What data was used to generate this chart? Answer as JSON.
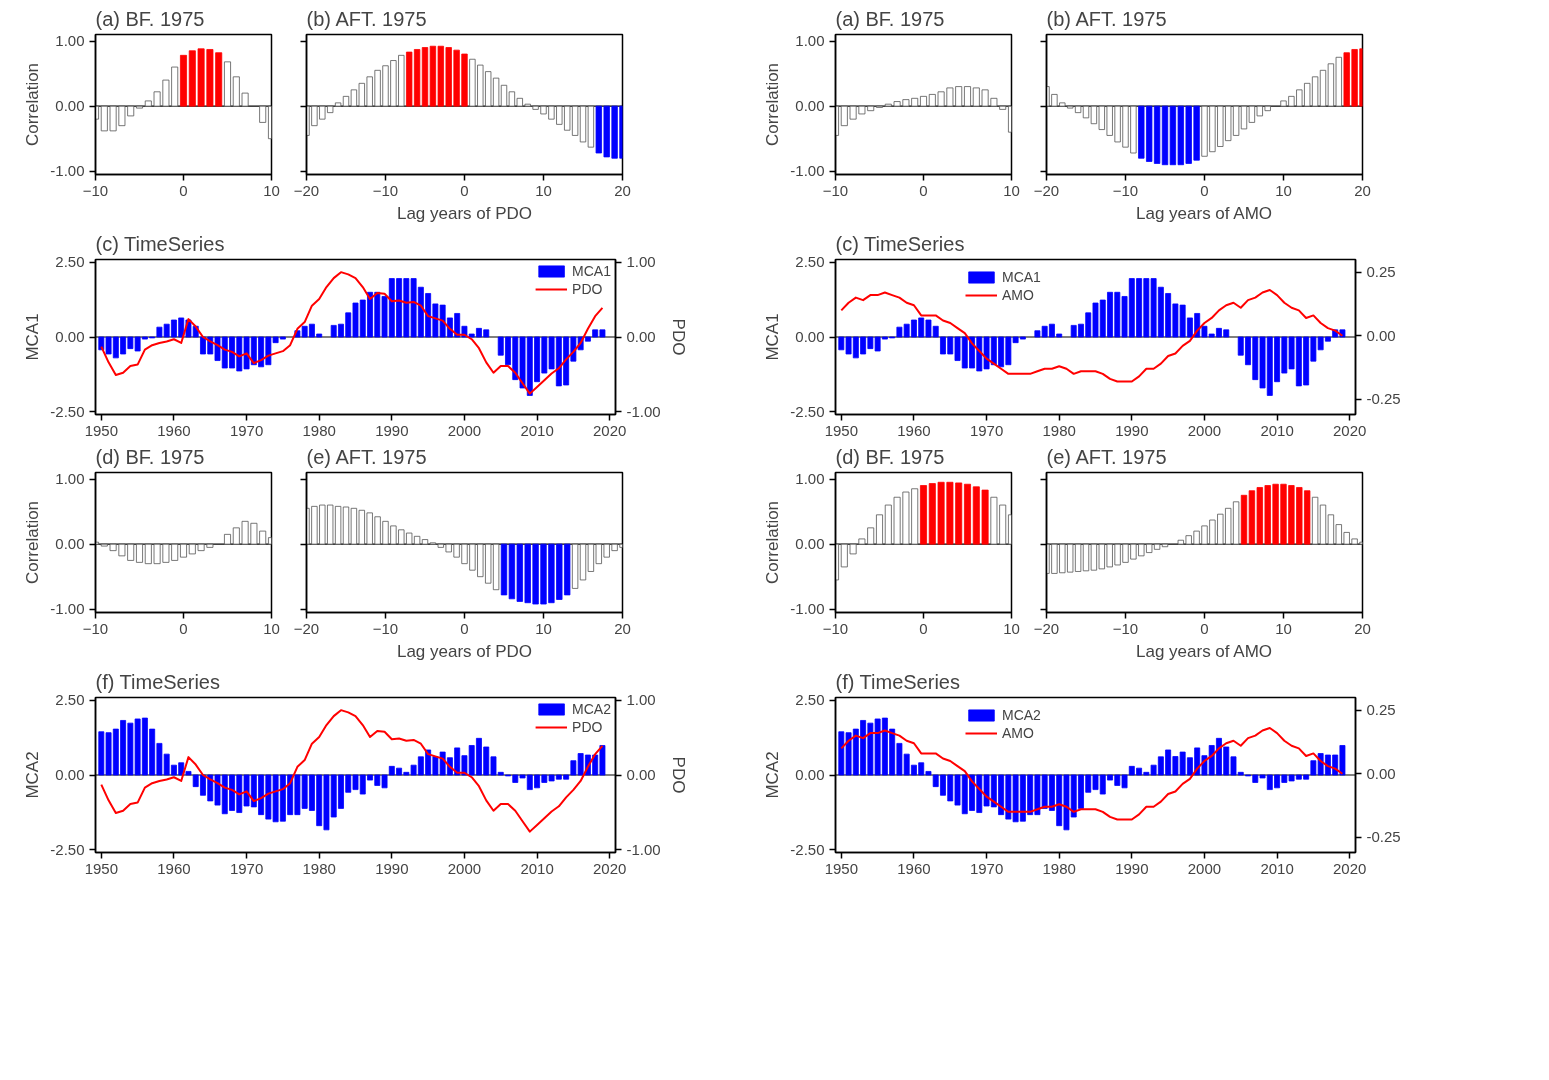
{
  "chart_data": [
    {
      "type": "bar",
      "title": "(a) BF. 1975",
      "ylabel": "Correlation",
      "x": [
        -10,
        -9,
        -8,
        -7,
        -6,
        -5,
        -4,
        -3,
        -2,
        -1,
        0,
        1,
        2,
        3,
        4,
        5,
        6,
        7,
        8,
        9,
        10
      ],
      "values": [
        -0.2,
        -0.38,
        -0.38,
        -0.3,
        -0.15,
        -0.03,
        0.08,
        0.22,
        0.4,
        0.6,
        0.78,
        0.85,
        0.88,
        0.87,
        0.82,
        0.68,
        0.45,
        0.2,
        0.0,
        -0.25,
        -0.5
      ],
      "colors": [
        "#ffffff",
        "#ffffff",
        "#ffffff",
        "#ffffff",
        "#ffffff",
        "#ffffff",
        "#ffffff",
        "#ffffff",
        "#ffffff",
        "#ffffff",
        "#ff0000",
        "#ff0000",
        "#ff0000",
        "#ff0000",
        "#ff0000",
        "#ffffff",
        "#ffffff",
        "#ffffff",
        "#ffffff",
        "#ffffff",
        "#ffffff"
      ],
      "xlim": [
        -10,
        10
      ],
      "xticks": [
        -10,
        0,
        10
      ],
      "ylim": [
        -1.05,
        1.1
      ],
      "yticks": [
        {
          "value": -1,
          "label": "-1.00"
        },
        {
          "value": 0,
          "label": "0.00"
        },
        {
          "value": 1,
          "label": "1.00"
        }
      ],
      "ref_lines": [
        {
          "axis": "y",
          "value": 0
        }
      ]
    },
    {
      "type": "bar",
      "title": "(b) AFT. 1975",
      "xlabel": "Lag years of PDO",
      "x": [
        -20,
        -19,
        -18,
        -17,
        -16,
        -15,
        -14,
        -13,
        -12,
        -11,
        -10,
        -9,
        -8,
        -7,
        -6,
        -5,
        -4,
        -3,
        -2,
        -1,
        0,
        1,
        2,
        3,
        4,
        5,
        6,
        7,
        8,
        9,
        10,
        11,
        12,
        13,
        14,
        15,
        16,
        17,
        18,
        19,
        20
      ],
      "values": [
        -0.45,
        -0.3,
        -0.2,
        -0.1,
        0.05,
        0.15,
        0.25,
        0.35,
        0.45,
        0.55,
        0.62,
        0.7,
        0.78,
        0.83,
        0.87,
        0.9,
        0.92,
        0.92,
        0.9,
        0.86,
        0.8,
        0.72,
        0.63,
        0.53,
        0.43,
        0.32,
        0.22,
        0.12,
        0.03,
        -0.05,
        -0.12,
        -0.2,
        -0.28,
        -0.37,
        -0.45,
        -0.55,
        -0.63,
        -0.72,
        -0.78,
        -0.8,
        -0.8
      ],
      "colors": [
        "#ffffff",
        "#ffffff",
        "#ffffff",
        "#ffffff",
        "#ffffff",
        "#ffffff",
        "#ffffff",
        "#ffffff",
        "#ffffff",
        "#ffffff",
        "#ffffff",
        "#ffffff",
        "#ffffff",
        "#ff0000",
        "#ff0000",
        "#ff0000",
        "#ff0000",
        "#ff0000",
        "#ff0000",
        "#ff0000",
        "#ff0000",
        "#ffffff",
        "#ffffff",
        "#ffffff",
        "#ffffff",
        "#ffffff",
        "#ffffff",
        "#ffffff",
        "#ffffff",
        "#ffffff",
        "#ffffff",
        "#ffffff",
        "#ffffff",
        "#ffffff",
        "#ffffff",
        "#ffffff",
        "#ffffff",
        "#0000ff",
        "#0000ff",
        "#0000ff",
        "#0000ff"
      ],
      "xlim": [
        -20,
        20
      ],
      "xticks": [
        -20,
        -10,
        0,
        10,
        20
      ],
      "ylim": [
        -1.05,
        1.1
      ],
      "yticks": [
        -1,
        0,
        1
      ],
      "tick_labels": "x",
      "ref_lines": [
        {
          "axis": "y",
          "value": 0
        }
      ]
    },
    {
      "type": "bar",
      "title": "(c) TimeSeries",
      "ylabel": "MCA1",
      "y2label": "PDO",
      "x": [
        1950,
        1951,
        1952,
        1953,
        1954,
        1955,
        1956,
        1957,
        1958,
        1959,
        1960,
        1961,
        1962,
        1963,
        1964,
        1965,
        1966,
        1967,
        1968,
        1969,
        1970,
        1971,
        1972,
        1973,
        1974,
        1975,
        1976,
        1977,
        1978,
        1979,
        1980,
        1981,
        1982,
        1983,
        1984,
        1985,
        1986,
        1987,
        1988,
        1989,
        1990,
        1991,
        1992,
        1993,
        1994,
        1995,
        1996,
        1997,
        1998,
        1999,
        2000,
        2001,
        2002,
        2003,
        2004,
        2005,
        2006,
        2007,
        2008,
        2009,
        2010,
        2011,
        2012,
        2013,
        2014,
        2015,
        2016,
        2017,
        2018,
        2019
      ],
      "series": [
        {
          "name": "MCA1",
          "color": "#0000ff",
          "values": [
            -0.43,
            -0.57,
            -0.7,
            -0.57,
            -0.39,
            -0.47,
            -0.07,
            -0.03,
            0.33,
            0.43,
            0.57,
            0.64,
            0.57,
            0.36,
            -0.57,
            -0.57,
            -0.79,
            -1.04,
            -1.04,
            -1.14,
            -1.07,
            -0.93,
            -1.0,
            -0.93,
            -0.19,
            -0.07,
            0.0,
            0.21,
            0.36,
            0.43,
            0.1,
            0.0,
            0.39,
            0.43,
            0.81,
            1.14,
            1.24,
            1.5,
            1.5,
            1.36,
            1.96,
            1.96,
            1.96,
            1.96,
            1.67,
            1.46,
            1.11,
            1.07,
            0.64,
            0.79,
            0.36,
            0.1,
            0.29,
            0.24,
            0.0,
            -0.61,
            -0.93,
            -1.43,
            -1.71,
            -1.96,
            -1.5,
            -1.21,
            -1.07,
            -1.64,
            -1.61,
            -0.81,
            -0.43,
            -0.14,
            0.24,
            0.24
          ]
        },
        {
          "name": "PDO",
          "type": "line",
          "axis": "y2",
          "color": "#ff0000",
          "values": [
            -0.13,
            -0.34,
            -0.51,
            -0.48,
            -0.39,
            -0.37,
            -0.17,
            -0.11,
            -0.08,
            -0.06,
            -0.03,
            -0.08,
            0.24,
            0.14,
            0.0,
            -0.06,
            -0.11,
            -0.17,
            -0.2,
            -0.26,
            -0.22,
            -0.35,
            -0.31,
            -0.25,
            -0.22,
            -0.19,
            -0.11,
            0.11,
            0.2,
            0.42,
            0.51,
            0.67,
            0.79,
            0.87,
            0.84,
            0.79,
            0.67,
            0.51,
            0.59,
            0.58,
            0.48,
            0.49,
            0.46,
            0.47,
            0.42,
            0.28,
            0.25,
            0.22,
            0.11,
            0.03,
            0.03,
            -0.03,
            -0.15,
            -0.34,
            -0.48,
            -0.39,
            -0.39,
            -0.48,
            -0.62,
            -0.76,
            -0.67,
            -0.58,
            -0.49,
            -0.42,
            -0.3,
            -0.2,
            -0.08,
            0.11,
            0.28,
            0.39
          ]
        }
      ],
      "xlim": [
        1949.2,
        2020.8
      ],
      "xticks": [
        1950,
        1960,
        1970,
        1980,
        1990,
        2000,
        2010,
        2020
      ],
      "ylim": [
        -2.6,
        2.6
      ],
      "yticks": [
        {
          "value": -2.5,
          "label": "-2.50"
        },
        {
          "value": 0,
          "label": "0.00"
        },
        {
          "value": 2.5,
          "label": "2.50"
        }
      ],
      "y2lim": [
        -1.04,
        1.04
      ],
      "y2ticks": [
        {
          "value": -1,
          "label": "-1.00"
        },
        {
          "value": 0,
          "label": "0.00"
        },
        {
          "value": 1,
          "label": "1.00"
        }
      ],
      "legend": "top right",
      "ref_lines": [
        {
          "axis": "y",
          "value": 0
        }
      ]
    },
    {
      "type": "bar",
      "title": "(d) BF. 1975",
      "ylabel": "Correlation",
      "x": [
        -10,
        -9,
        -8,
        -7,
        -6,
        -5,
        -4,
        -3,
        -2,
        -1,
        0,
        1,
        2,
        3,
        4,
        5,
        6,
        7,
        8,
        9,
        10
      ],
      "values": [
        0.03,
        -0.03,
        -0.1,
        -0.18,
        -0.25,
        -0.28,
        -0.3,
        -0.3,
        -0.28,
        -0.25,
        -0.2,
        -0.15,
        -0.1,
        -0.05,
        0.0,
        0.15,
        0.25,
        0.35,
        0.32,
        0.2,
        0.1
      ],
      "colors": [
        "#ffffff",
        "#ffffff",
        "#ffffff",
        "#ffffff",
        "#ffffff",
        "#ffffff",
        "#ffffff",
        "#ffffff",
        "#ffffff",
        "#ffffff",
        "#ffffff",
        "#ffffff",
        "#ffffff",
        "#ffffff",
        "#ffffff",
        "#ffffff",
        "#ffffff",
        "#ffffff",
        "#ffffff",
        "#ffffff",
        "#ffffff"
      ],
      "xlim": [
        -10,
        10
      ],
      "xticks": [
        -10,
        0,
        10
      ],
      "ylim": [
        -1.05,
        1.1
      ],
      "yticks": [
        {
          "value": -1,
          "label": "-1.00"
        },
        {
          "value": 0,
          "label": "0.00"
        },
        {
          "value": 1,
          "label": "1.00"
        }
      ],
      "ref_lines": [
        {
          "axis": "y",
          "value": 0
        }
      ]
    },
    {
      "type": "bar",
      "title": "(e) AFT. 1975",
      "xlabel": "Lag years of PDO",
      "x": [
        -20,
        -19,
        -18,
        -17,
        -16,
        -15,
        -14,
        -13,
        -12,
        -11,
        -10,
        -9,
        -8,
        -7,
        -6,
        -5,
        -4,
        -3,
        -2,
        -1,
        0,
        1,
        2,
        3,
        4,
        5,
        6,
        7,
        8,
        9,
        10,
        11,
        12,
        13,
        14,
        15,
        16,
        17,
        18,
        19,
        20
      ],
      "values": [
        0.55,
        0.58,
        0.6,
        0.6,
        0.58,
        0.57,
        0.55,
        0.52,
        0.48,
        0.42,
        0.35,
        0.28,
        0.22,
        0.17,
        0.12,
        0.07,
        0.02,
        -0.05,
        -0.12,
        -0.2,
        -0.3,
        -0.4,
        -0.5,
        -0.6,
        -0.7,
        -0.78,
        -0.84,
        -0.88,
        -0.9,
        -0.92,
        -0.92,
        -0.9,
        -0.85,
        -0.78,
        -0.68,
        -0.55,
        -0.42,
        -0.3,
        -0.2,
        -0.1,
        -0.05
      ],
      "colors": [
        "#ffffff",
        "#ffffff",
        "#ffffff",
        "#ffffff",
        "#ffffff",
        "#ffffff",
        "#ffffff",
        "#ffffff",
        "#ffffff",
        "#ffffff",
        "#ffffff",
        "#ffffff",
        "#ffffff",
        "#ffffff",
        "#ffffff",
        "#ffffff",
        "#ffffff",
        "#ffffff",
        "#ffffff",
        "#ffffff",
        "#ffffff",
        "#ffffff",
        "#ffffff",
        "#ffffff",
        "#ffffff",
        "#0000ff",
        "#0000ff",
        "#0000ff",
        "#0000ff",
        "#0000ff",
        "#0000ff",
        "#0000ff",
        "#0000ff",
        "#0000ff",
        "#ffffff",
        "#ffffff",
        "#ffffff",
        "#ffffff",
        "#ffffff",
        "#ffffff",
        "#ffffff"
      ],
      "xlim": [
        -20,
        20
      ],
      "xticks": [
        -20,
        -10,
        0,
        10,
        20
      ],
      "ylim": [
        -1.05,
        1.1
      ],
      "yticks": [
        -1,
        0,
        1
      ],
      "tick_labels": "x",
      "ref_lines": [
        {
          "axis": "y",
          "value": 0
        }
      ]
    },
    {
      "type": "bar",
      "title": "(f) TimeSeries",
      "ylabel": "MCA2",
      "y2label": "PDO",
      "x": [
        1950,
        1951,
        1952,
        1953,
        1954,
        1955,
        1956,
        1957,
        1958,
        1959,
        1960,
        1961,
        1962,
        1963,
        1964,
        1965,
        1966,
        1967,
        1968,
        1969,
        1970,
        1971,
        1972,
        1973,
        1974,
        1975,
        1976,
        1977,
        1978,
        1979,
        1980,
        1981,
        1982,
        1983,
        1984,
        1985,
        1986,
        1987,
        1988,
        1989,
        1990,
        1991,
        1992,
        1993,
        1994,
        1995,
        1996,
        1997,
        1998,
        1999,
        2000,
        2001,
        2002,
        2003,
        2004,
        2005,
        2006,
        2007,
        2008,
        2009,
        2010,
        2011,
        2012,
        2013,
        2014,
        2015,
        2016,
        2017,
        2018,
        2019
      ],
      "series": [
        {
          "name": "MCA2",
          "color": "#0000ff",
          "values": [
            1.45,
            1.42,
            1.54,
            1.83,
            1.74,
            1.88,
            1.91,
            1.54,
            1.06,
            0.7,
            0.33,
            0.41,
            0.12,
            -0.39,
            -0.68,
            -0.87,
            -1.01,
            -1.3,
            -1.19,
            -1.26,
            -1.04,
            -1.07,
            -1.33,
            -1.48,
            -1.57,
            -1.55,
            -1.33,
            -1.33,
            -1.12,
            -1.19,
            -1.7,
            -1.84,
            -1.41,
            -1.12,
            -0.58,
            -0.49,
            -0.64,
            -0.17,
            -0.35,
            -0.43,
            0.29,
            0.23,
            0.09,
            0.33,
            0.61,
            0.84,
            0.62,
            0.77,
            0.58,
            0.91,
            0.65,
            0.99,
            1.23,
            0.94,
            0.61,
            0.09,
            -0.03,
            -0.25,
            -0.1,
            -0.49,
            -0.43,
            -0.25,
            -0.2,
            -0.14,
            -0.14,
            0.48,
            0.72,
            0.67,
            0.67,
            0.99
          ]
        },
        {
          "name": "PDO",
          "type": "line",
          "axis": "y2",
          "color": "#ff0000",
          "values": [
            -0.13,
            -0.34,
            -0.51,
            -0.48,
            -0.39,
            -0.37,
            -0.17,
            -0.11,
            -0.08,
            -0.06,
            -0.03,
            -0.08,
            0.24,
            0.14,
            0.0,
            -0.06,
            -0.11,
            -0.17,
            -0.2,
            -0.26,
            -0.22,
            -0.35,
            -0.31,
            -0.25,
            -0.22,
            -0.19,
            -0.11,
            0.11,
            0.2,
            0.42,
            0.51,
            0.67,
            0.79,
            0.87,
            0.84,
            0.79,
            0.67,
            0.51,
            0.59,
            0.58,
            0.48,
            0.49,
            0.46,
            0.47,
            0.42,
            0.28,
            0.25,
            0.22,
            0.11,
            0.03,
            0.03,
            -0.03,
            -0.15,
            -0.34,
            -0.48,
            -0.39,
            -0.39,
            -0.48,
            -0.62,
            -0.76,
            -0.67,
            -0.58,
            -0.49,
            -0.42,
            -0.3,
            -0.2,
            -0.08,
            0.11,
            0.28,
            0.39
          ]
        }
      ],
      "xlim": [
        1949.2,
        2020.8
      ],
      "xticks": [
        1950,
        1960,
        1970,
        1980,
        1990,
        2000,
        2010,
        2020
      ],
      "ylim": [
        -2.6,
        2.6
      ],
      "yticks": [
        {
          "value": -2.5,
          "label": "-2.50"
        },
        {
          "value": 0,
          "label": "0.00"
        },
        {
          "value": 2.5,
          "label": "2.50"
        }
      ],
      "y2lim": [
        -1.04,
        1.04
      ],
      "y2ticks": [
        {
          "value": -1,
          "label": "-1.00"
        },
        {
          "value": 0,
          "label": "0.00"
        },
        {
          "value": 1,
          "label": "1.00"
        }
      ],
      "legend": "top right",
      "ref_lines": [
        {
          "axis": "y",
          "value": 0
        }
      ]
    },
    {
      "type": "bar",
      "title": "(a) BF. 1975",
      "ylabel": "Correlation",
      "x": [
        -10,
        -9,
        -8,
        -7,
        -6,
        -5,
        -4,
        -3,
        -2,
        -1,
        0,
        1,
        2,
        3,
        4,
        5,
        6,
        7,
        8,
        9,
        10
      ],
      "values": [
        -0.45,
        -0.3,
        -0.2,
        -0.12,
        -0.07,
        -0.02,
        0.03,
        0.07,
        0.1,
        0.12,
        0.15,
        0.18,
        0.22,
        0.28,
        0.3,
        0.3,
        0.28,
        0.25,
        0.12,
        -0.05,
        -0.4
      ],
      "colors": [
        "#ffffff",
        "#ffffff",
        "#ffffff",
        "#ffffff",
        "#ffffff",
        "#ffffff",
        "#ffffff",
        "#ffffff",
        "#ffffff",
        "#ffffff",
        "#ffffff",
        "#ffffff",
        "#ffffff",
        "#ffffff",
        "#ffffff",
        "#ffffff",
        "#ffffff",
        "#ffffff",
        "#ffffff",
        "#ffffff",
        "#ffffff"
      ],
      "xlim": [
        -10,
        10
      ],
      "xticks": [
        -10,
        0,
        10
      ],
      "ylim": [
        -1.05,
        1.1
      ],
      "yticks": [
        {
          "value": -1,
          "label": "-1.00"
        },
        {
          "value": 0,
          "label": "0.00"
        },
        {
          "value": 1,
          "label": "1.00"
        }
      ],
      "ref_lines": [
        {
          "axis": "y",
          "value": 0
        }
      ]
    },
    {
      "type": "bar",
      "title": "(b) AFT. 1975",
      "xlabel": "Lag years of AMO",
      "x": [
        -20,
        -19,
        -18,
        -17,
        -16,
        -15,
        -14,
        -13,
        -12,
        -11,
        -10,
        -9,
        -8,
        -7,
        -6,
        -5,
        -4,
        -3,
        -2,
        -1,
        0,
        1,
        2,
        3,
        4,
        5,
        6,
        7,
        8,
        9,
        10,
        11,
        12,
        13,
        14,
        15,
        16,
        17,
        18,
        19,
        20
      ],
      "values": [
        0.3,
        0.18,
        0.05,
        -0.03,
        -0.1,
        -0.18,
        -0.27,
        -0.36,
        -0.45,
        -0.55,
        -0.63,
        -0.72,
        -0.8,
        -0.85,
        -0.88,
        -0.9,
        -0.9,
        -0.9,
        -0.88,
        -0.83,
        -0.77,
        -0.7,
        -0.62,
        -0.53,
        -0.45,
        -0.35,
        -0.25,
        -0.15,
        -0.07,
        0.0,
        0.08,
        0.15,
        0.25,
        0.35,
        0.45,
        0.55,
        0.65,
        0.75,
        0.82,
        0.87,
        0.88
      ],
      "colors": [
        "#ffffff",
        "#ffffff",
        "#ffffff",
        "#ffffff",
        "#ffffff",
        "#ffffff",
        "#ffffff",
        "#ffffff",
        "#ffffff",
        "#ffffff",
        "#ffffff",
        "#ffffff",
        "#0000ff",
        "#0000ff",
        "#0000ff",
        "#0000ff",
        "#0000ff",
        "#0000ff",
        "#0000ff",
        "#0000ff",
        "#ffffff",
        "#ffffff",
        "#ffffff",
        "#ffffff",
        "#ffffff",
        "#ffffff",
        "#ffffff",
        "#ffffff",
        "#ffffff",
        "#ffffff",
        "#ffffff",
        "#ffffff",
        "#ffffff",
        "#ffffff",
        "#ffffff",
        "#ffffff",
        "#ffffff",
        "#ffffff",
        "#ff0000",
        "#ff0000",
        "#ff0000"
      ],
      "xlim": [
        -20,
        20
      ],
      "xticks": [
        -20,
        -10,
        0,
        10,
        20
      ],
      "ylim": [
        -1.05,
        1.1
      ],
      "yticks": [
        -1,
        0,
        1
      ],
      "tick_labels": "x",
      "ref_lines": [
        {
          "axis": "y",
          "value": 0
        }
      ]
    },
    {
      "type": "bar",
      "title": "(c) TimeSeries",
      "ylabel": "MCA1",
      "x": [
        1950,
        1951,
        1952,
        1953,
        1954,
        1955,
        1956,
        1957,
        1958,
        1959,
        1960,
        1961,
        1962,
        1963,
        1964,
        1965,
        1966,
        1967,
        1968,
        1969,
        1970,
        1971,
        1972,
        1973,
        1974,
        1975,
        1976,
        1977,
        1978,
        1979,
        1980,
        1981,
        1982,
        1983,
        1984,
        1985,
        1986,
        1987,
        1988,
        1989,
        1990,
        1991,
        1992,
        1993,
        1994,
        1995,
        1996,
        1997,
        1998,
        1999,
        2000,
        2001,
        2002,
        2003,
        2004,
        2005,
        2006,
        2007,
        2008,
        2009,
        2010,
        2011,
        2012,
        2013,
        2014,
        2015,
        2016,
        2017,
        2018,
        2019
      ],
      "series": [
        {
          "name": "MCA1",
          "color": "#0000ff",
          "values": [
            -0.43,
            -0.57,
            -0.7,
            -0.57,
            -0.39,
            -0.47,
            -0.07,
            -0.03,
            0.33,
            0.43,
            0.57,
            0.64,
            0.57,
            0.36,
            -0.57,
            -0.57,
            -0.79,
            -1.04,
            -1.04,
            -1.14,
            -1.07,
            -0.93,
            -1.0,
            -0.93,
            -0.19,
            -0.07,
            0.0,
            0.21,
            0.36,
            0.43,
            0.1,
            0.0,
            0.39,
            0.43,
            0.81,
            1.14,
            1.24,
            1.5,
            1.5,
            1.36,
            1.96,
            1.96,
            1.96,
            1.96,
            1.67,
            1.46,
            1.11,
            1.07,
            0.64,
            0.79,
            0.36,
            0.1,
            0.29,
            0.24,
            0.0,
            -0.61,
            -0.93,
            -1.43,
            -1.71,
            -1.96,
            -1.5,
            -1.21,
            -1.07,
            -1.64,
            -1.61,
            -0.81,
            -0.43,
            -0.14,
            0.24,
            0.24
          ]
        },
        {
          "name": "AMO",
          "type": "line",
          "axis": "y2",
          "color": "#ff0000",
          "values": [
            0.1,
            0.13,
            0.15,
            0.14,
            0.16,
            0.16,
            0.17,
            0.16,
            0.15,
            0.13,
            0.12,
            0.08,
            0.08,
            0.08,
            0.06,
            0.05,
            0.03,
            0.01,
            -0.03,
            -0.06,
            -0.09,
            -0.11,
            -0.13,
            -0.15,
            -0.15,
            -0.15,
            -0.15,
            -0.14,
            -0.13,
            -0.13,
            -0.12,
            -0.13,
            -0.15,
            -0.14,
            -0.14,
            -0.14,
            -0.15,
            -0.17,
            -0.18,
            -0.18,
            -0.18,
            -0.16,
            -0.13,
            -0.13,
            -0.11,
            -0.08,
            -0.07,
            -0.04,
            -0.02,
            0.02,
            0.05,
            0.07,
            0.1,
            0.12,
            0.13,
            0.11,
            0.14,
            0.15,
            0.17,
            0.18,
            0.16,
            0.13,
            0.11,
            0.1,
            0.07,
            0.08,
            0.05,
            0.03,
            0.02,
            0.0
          ]
        }
      ],
      "xlim": [
        1949.2,
        2020.8
      ],
      "xticks": [
        1950,
        1960,
        1970,
        1980,
        1990,
        2000,
        2010,
        2020
      ],
      "ylim": [
        -2.6,
        2.6
      ],
      "yticks": [
        {
          "value": -2.5,
          "label": "-2.50"
        },
        {
          "value": 0,
          "label": "0.00"
        },
        {
          "value": 2.5,
          "label": "2.50"
        }
      ],
      "y2lim": [
        -0.31,
        0.3
      ],
      "y2ticks": [
        {
          "value": -0.25,
          "label": "-0.25"
        },
        {
          "value": 0,
          "label": "0.00"
        },
        {
          "value": 0.25,
          "label": "0.25"
        }
      ],
      "legend": "top",
      "ref_lines": [
        {
          "axis": "y",
          "value": 0
        }
      ]
    },
    {
      "type": "bar",
      "title": "(d) BF. 1975",
      "ylabel": "Correlation",
      "x": [
        -10,
        -9,
        -8,
        -7,
        -6,
        -5,
        -4,
        -3,
        -2,
        -1,
        0,
        1,
        2,
        3,
        4,
        5,
        6,
        7,
        8,
        9,
        10
      ],
      "values": [
        -0.55,
        -0.35,
        -0.15,
        0.08,
        0.25,
        0.45,
        0.6,
        0.72,
        0.8,
        0.85,
        0.9,
        0.93,
        0.95,
        0.95,
        0.94,
        0.92,
        0.88,
        0.83,
        0.72,
        0.6,
        0.45
      ],
      "colors": [
        "#ffffff",
        "#ffffff",
        "#ffffff",
        "#ffffff",
        "#ffffff",
        "#ffffff",
        "#ffffff",
        "#ffffff",
        "#ffffff",
        "#ffffff",
        "#ff0000",
        "#ff0000",
        "#ff0000",
        "#ff0000",
        "#ff0000",
        "#ff0000",
        "#ff0000",
        "#ff0000",
        "#ffffff",
        "#ffffff",
        "#ffffff"
      ],
      "xlim": [
        -10,
        10
      ],
      "xticks": [
        -10,
        0,
        10
      ],
      "ylim": [
        -1.05,
        1.1
      ],
      "yticks": [
        {
          "value": -1,
          "label": "-1.00"
        },
        {
          "value": 0,
          "label": "0.00"
        },
        {
          "value": 1,
          "label": "1.00"
        }
      ],
      "ref_lines": [
        {
          "axis": "y",
          "value": 0
        }
      ]
    },
    {
      "type": "bar",
      "title": "(e) AFT. 1975",
      "xlabel": "Lag years of AMO",
      "x": [
        -20,
        -19,
        -18,
        -17,
        -16,
        -15,
        -14,
        -13,
        -12,
        -11,
        -10,
        -9,
        -8,
        -7,
        -6,
        -5,
        -4,
        -3,
        -2,
        -1,
        0,
        1,
        2,
        3,
        4,
        5,
        6,
        7,
        8,
        9,
        10,
        11,
        12,
        13,
        14,
        15,
        16,
        17,
        18,
        19,
        20
      ],
      "values": [
        -0.45,
        -0.45,
        -0.44,
        -0.43,
        -0.42,
        -0.41,
        -0.4,
        -0.38,
        -0.35,
        -0.32,
        -0.28,
        -0.23,
        -0.18,
        -0.13,
        -0.08,
        -0.04,
        0.0,
        0.06,
        0.13,
        0.2,
        0.28,
        0.37,
        0.46,
        0.55,
        0.65,
        0.75,
        0.82,
        0.87,
        0.9,
        0.92,
        0.92,
        0.9,
        0.87,
        0.82,
        0.72,
        0.6,
        0.45,
        0.3,
        0.18,
        0.08,
        0.03
      ],
      "colors": [
        "#ffffff",
        "#ffffff",
        "#ffffff",
        "#ffffff",
        "#ffffff",
        "#ffffff",
        "#ffffff",
        "#ffffff",
        "#ffffff",
        "#ffffff",
        "#ffffff",
        "#ffffff",
        "#ffffff",
        "#ffffff",
        "#ffffff",
        "#ffffff",
        "#ffffff",
        "#ffffff",
        "#ffffff",
        "#ffffff",
        "#ffffff",
        "#ffffff",
        "#ffffff",
        "#ffffff",
        "#ffffff",
        "#ff0000",
        "#ff0000",
        "#ff0000",
        "#ff0000",
        "#ff0000",
        "#ff0000",
        "#ff0000",
        "#ff0000",
        "#ff0000",
        "#ffffff",
        "#ffffff",
        "#ffffff",
        "#ffffff",
        "#ffffff",
        "#ffffff",
        "#ffffff"
      ],
      "xlim": [
        -20,
        20
      ],
      "xticks": [
        -20,
        -10,
        0,
        10,
        20
      ],
      "ylim": [
        -1.05,
        1.1
      ],
      "yticks": [
        -1,
        0,
        1
      ],
      "tick_labels": "x",
      "ref_lines": [
        {
          "axis": "y",
          "value": 0
        }
      ]
    },
    {
      "type": "bar",
      "title": "(f) TimeSeries",
      "ylabel": "MCA2",
      "x": [
        1950,
        1951,
        1952,
        1953,
        1954,
        1955,
        1956,
        1957,
        1958,
        1959,
        1960,
        1961,
        1962,
        1963,
        1964,
        1965,
        1966,
        1967,
        1968,
        1969,
        1970,
        1971,
        1972,
        1973,
        1974,
        1975,
        1976,
        1977,
        1978,
        1979,
        1980,
        1981,
        1982,
        1983,
        1984,
        1985,
        1986,
        1987,
        1988,
        1989,
        1990,
        1991,
        1992,
        1993,
        1994,
        1995,
        1996,
        1997,
        1998,
        1999,
        2000,
        2001,
        2002,
        2003,
        2004,
        2005,
        2006,
        2007,
        2008,
        2009,
        2010,
        2011,
        2012,
        2013,
        2014,
        2015,
        2016,
        2017,
        2018,
        2019
      ],
      "series": [
        {
          "name": "MCA2",
          "color": "#0000ff",
          "values": [
            1.45,
            1.42,
            1.54,
            1.83,
            1.74,
            1.88,
            1.91,
            1.54,
            1.06,
            0.7,
            0.33,
            0.41,
            0.12,
            -0.39,
            -0.68,
            -0.87,
            -1.01,
            -1.3,
            -1.19,
            -1.26,
            -1.04,
            -1.07,
            -1.33,
            -1.48,
            -1.57,
            -1.55,
            -1.33,
            -1.33,
            -1.12,
            -1.19,
            -1.7,
            -1.84,
            -1.41,
            -1.12,
            -0.58,
            -0.49,
            -0.64,
            -0.17,
            -0.35,
            -0.43,
            0.29,
            0.23,
            0.09,
            0.33,
            0.61,
            0.84,
            0.62,
            0.77,
            0.58,
            0.91,
            0.65,
            0.99,
            1.23,
            0.94,
            0.61,
            0.09,
            -0.03,
            -0.25,
            -0.1,
            -0.49,
            -0.43,
            -0.25,
            -0.2,
            -0.14,
            -0.14,
            0.48,
            0.72,
            0.67,
            0.67,
            0.99
          ]
        },
        {
          "name": "AMO",
          "type": "line",
          "axis": "y2",
          "color": "#ff0000",
          "values": [
            0.1,
            0.13,
            0.15,
            0.14,
            0.16,
            0.16,
            0.17,
            0.16,
            0.15,
            0.13,
            0.12,
            0.08,
            0.08,
            0.08,
            0.06,
            0.05,
            0.03,
            0.01,
            -0.03,
            -0.06,
            -0.09,
            -0.11,
            -0.13,
            -0.15,
            -0.15,
            -0.15,
            -0.15,
            -0.14,
            -0.13,
            -0.13,
            -0.12,
            -0.13,
            -0.15,
            -0.14,
            -0.14,
            -0.14,
            -0.15,
            -0.17,
            -0.18,
            -0.18,
            -0.18,
            -0.16,
            -0.13,
            -0.13,
            -0.11,
            -0.08,
            -0.07,
            -0.04,
            -0.02,
            0.02,
            0.05,
            0.07,
            0.1,
            0.12,
            0.13,
            0.11,
            0.14,
            0.15,
            0.17,
            0.18,
            0.16,
            0.13,
            0.11,
            0.1,
            0.07,
            0.08,
            0.05,
            0.03,
            0.02,
            0.0
          ]
        }
      ],
      "xlim": [
        1949.2,
        2020.8
      ],
      "xticks": [
        1950,
        1960,
        1970,
        1980,
        1990,
        2000,
        2010,
        2020
      ],
      "ylim": [
        -2.6,
        2.6
      ],
      "yticks": [
        {
          "value": -2.5,
          "label": "-2.50"
        },
        {
          "value": 0,
          "label": "0.00"
        },
        {
          "value": 2.5,
          "label": "2.50"
        }
      ],
      "y2lim": [
        -0.31,
        0.3
      ],
      "y2ticks": [
        {
          "value": -0.25,
          "label": "-0.25"
        },
        {
          "value": 0,
          "label": "0.00"
        },
        {
          "value": 0.25,
          "label": "0.25"
        }
      ],
      "legend": "top",
      "ref_lines": [
        {
          "axis": "y",
          "value": 0
        }
      ]
    }
  ]
}
